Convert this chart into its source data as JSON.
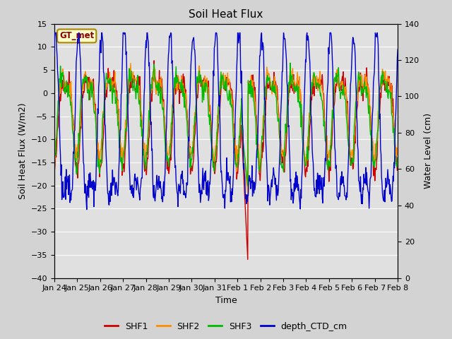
{
  "title": "Soil Heat Flux",
  "xlabel": "Time",
  "ylabel_left": "Soil Heat Flux (W/m2)",
  "ylabel_right": "Water Level (cm)",
  "ylim_left": [
    -40,
    15
  ],
  "ylim_right": [
    0,
    140
  ],
  "yticks_left": [
    -40,
    -35,
    -30,
    -25,
    -20,
    -15,
    -10,
    -5,
    0,
    5,
    10,
    15
  ],
  "yticks_right": [
    0,
    20,
    40,
    60,
    80,
    100,
    120,
    140
  ],
  "xtick_labels": [
    "Jan 24",
    "Jan 25",
    "Jan 26",
    "Jan 27",
    "Jan 28",
    "Jan 29",
    "Jan 30",
    "Jan 31",
    "Feb 1",
    "Feb 2",
    "Feb 3",
    "Feb 4",
    "Feb 5",
    "Feb 6",
    "Feb 7",
    "Feb 8"
  ],
  "colors": {
    "SHF1": "#cc0000",
    "SHF2": "#ff8c00",
    "SHF3": "#00bb00",
    "depth_CTD_cm": "#0000cc"
  },
  "legend_labels": [
    "SHF1",
    "SHF2",
    "SHF3",
    "depth_CTD_cm"
  ],
  "gt_met_label": "GT_met",
  "background_color": "#d3d3d3",
  "plot_bg_color": "#e0e0e0",
  "title_fontsize": 11,
  "axis_label_fontsize": 9,
  "tick_fontsize": 8,
  "legend_fontsize": 9,
  "linewidth": 1.0,
  "n_points": 720
}
